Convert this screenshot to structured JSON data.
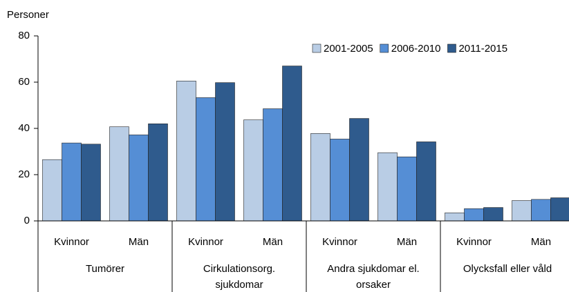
{
  "chart_data": {
    "type": "bar",
    "y_label": "Personer",
    "groups": [
      {
        "label": "Tumörer",
        "categories": [
          "Kvinnor",
          "Män"
        ]
      },
      {
        "label": "Cirkulationsorg. sjukdomar",
        "categories": [
          "Kvinnor",
          "Män"
        ]
      },
      {
        "label": "Andra sjukdomar el. orsaker",
        "categories": [
          "Kvinnor",
          "Män"
        ]
      },
      {
        "label": "Olycksfall eller våld",
        "categories": [
          "Kvinnor",
          "Män"
        ]
      }
    ],
    "series": [
      {
        "name": "2001-2005",
        "color": "#b9cde5",
        "values": [
          26.5,
          40.7,
          60.5,
          43.7,
          37.8,
          29.5,
          3.5,
          8.8
        ]
      },
      {
        "name": "2006-2010",
        "color": "#558ed5",
        "values": [
          33.7,
          37.2,
          53.3,
          48.5,
          35.4,
          27.7,
          5.3,
          9.3
        ]
      },
      {
        "name": "2011-2015",
        "color": "#2f5b8d",
        "values": [
          33.2,
          42.0,
          59.8,
          67.0,
          44.3,
          34.2,
          5.8,
          10.0
        ]
      }
    ],
    "ylim": [
      0,
      80
    ],
    "yticks": [
      0,
      20,
      40,
      60,
      80
    ],
    "legend": "top-right"
  }
}
